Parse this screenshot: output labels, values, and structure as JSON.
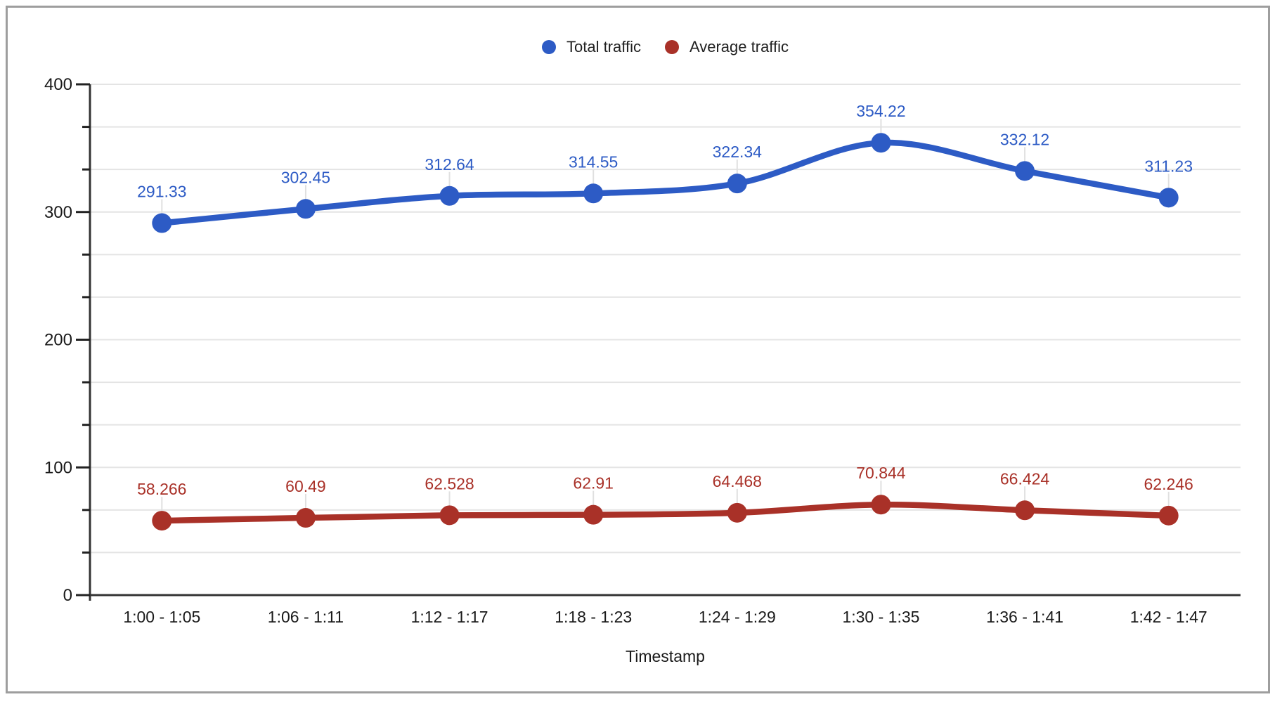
{
  "chart_data": {
    "type": "line",
    "smooth": true,
    "title": "",
    "xlabel": "Timestamp",
    "ylabel": "",
    "legend_position": "top",
    "grid": true,
    "categories": [
      "1:00 - 1:05",
      "1:06 - 1:11",
      "1:12 - 1:17",
      "1:18 - 1:23",
      "1:24 - 1:29",
      "1:30 - 1:35",
      "1:36 - 1:41",
      "1:42 - 1:47"
    ],
    "series": [
      {
        "name": "Total traffic",
        "color": "#2d5bc5",
        "values": [
          291.33,
          302.45,
          312.64,
          314.55,
          322.34,
          354.22,
          332.12,
          311.23
        ],
        "point_labels": [
          "291.33",
          "302.45",
          "312.64",
          "314.55",
          "322.34",
          "354.22",
          "332.12",
          "311.23"
        ]
      },
      {
        "name": "Average traffic",
        "color": "#a93128",
        "values": [
          58.266,
          60.49,
          62.528,
          62.91,
          64.468,
          70.844,
          66.424,
          62.246
        ],
        "point_labels": [
          "58.266",
          "60.49",
          "62.528",
          "62.91",
          "64.468",
          "70.844",
          "66.424",
          "62.246"
        ]
      }
    ],
    "y_axis": {
      "min": 0,
      "max": 400,
      "major_step": 100,
      "minor_divisions": 3,
      "tick_labels": [
        "0",
        "100",
        "200",
        "300",
        "400"
      ]
    }
  },
  "styles": {
    "background": "#ffffff",
    "frame_border_color": "#9e9e9e",
    "grid_color": "#e4e4e4",
    "axis_color": "#333333",
    "tick_color": "#222222",
    "tick_label_color": "#1a1a1a",
    "axis_title_color": "#1a1a1a",
    "legend_text_color": "#212121",
    "leader_line_color": "#e0e0e0"
  }
}
